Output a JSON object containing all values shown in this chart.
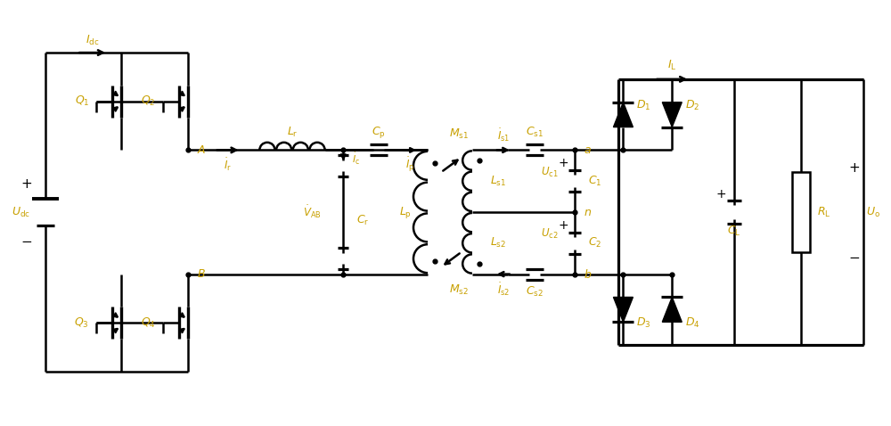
{
  "bg_color": "#ffffff",
  "line_color": "#000000",
  "label_color": "#c8a000",
  "fig_width": 10.0,
  "fig_height": 4.78,
  "lw": 1.8
}
